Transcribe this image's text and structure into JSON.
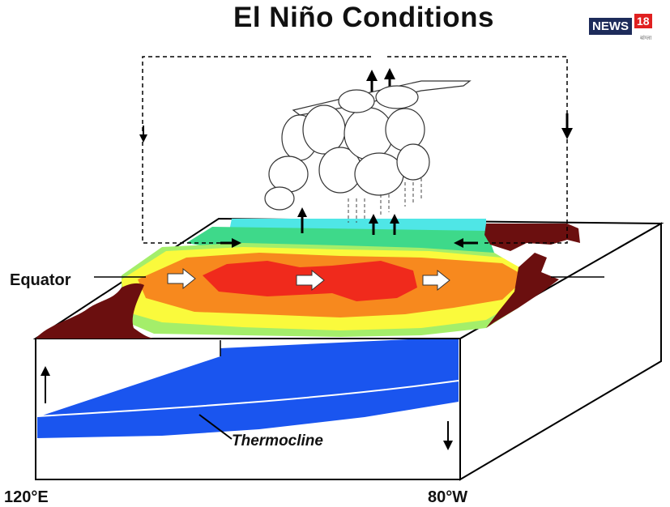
{
  "title": "El Niño Conditions",
  "logo": {
    "brand": "NEWS",
    "number": "18",
    "subtext": "बांग्ला"
  },
  "labels": {
    "equator": "Equator",
    "thermocline": "Thermocline",
    "west_longitude": "120°E",
    "east_longitude": "80°W"
  },
  "colors": {
    "land": "#6b0f0f",
    "sst_warmest": "#f02a1c",
    "sst_warm": "#f7891e",
    "sst_mild": "#fafa3c",
    "sst_cool": "#a4ee6a",
    "sst_cooler": "#3ed98a",
    "sst_coolest": "#4fe6e6",
    "ocean_deep": "#1a55ef",
    "ocean_surface": "#ffffff"
  }
}
